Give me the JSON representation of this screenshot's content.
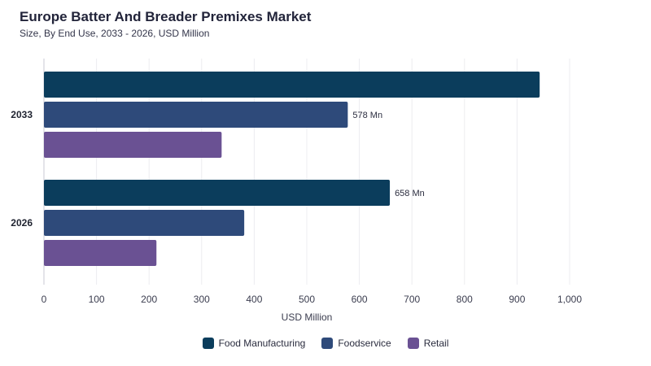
{
  "header": {
    "title": "Europe Batter And Breader Premixes Market",
    "subtitle": "Size, By End Use, 2033 - 2026, USD Million"
  },
  "chart_data": {
    "type": "bar",
    "orientation": "horizontal",
    "categories": [
      "2033",
      "2026"
    ],
    "series": [
      {
        "name": "Food Manufacturing",
        "color": "#0b3d5c",
        "values": [
          943,
          658
        ]
      },
      {
        "name": "Foodservice",
        "color": "#2e4a7a",
        "values": [
          578,
          381
        ]
      },
      {
        "name": "Retail",
        "color": "#6a5193",
        "values": [
          338,
          214
        ]
      }
    ],
    "data_labels": [
      {
        "series": 1,
        "category": 0,
        "text": "578 Mn"
      },
      {
        "series": 0,
        "category": 1,
        "text": "658 Mn"
      }
    ],
    "xlabel": "USD Million",
    "xlim": [
      0,
      1000
    ],
    "xticks": [
      "0",
      "100",
      "200",
      "300",
      "400",
      "500",
      "600",
      "700",
      "800",
      "900",
      "1,000"
    ],
    "grid": true,
    "legend_position": "bottom-center"
  }
}
